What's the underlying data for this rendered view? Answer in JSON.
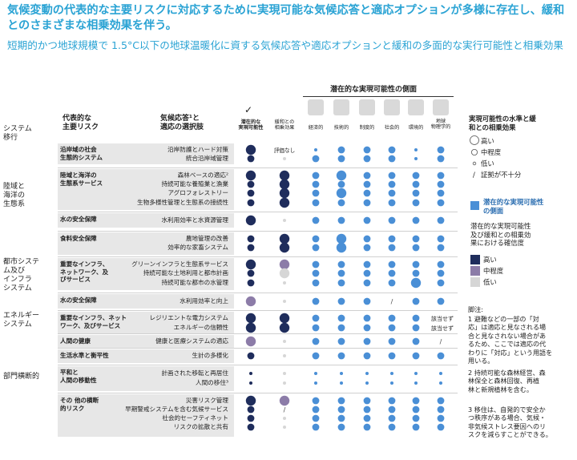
{
  "title": "気候変動の代表的な主要リスクに対応するために実現可能な気候応答と適応オプションが多様に存在し、緩和とのさまざまな相乗効果を伴う。",
  "subtitle": "短期的かつ地球規模で 1.5°C以下の地球温暖化に資する気候応答や適応オプションと緩和の多面的な実行可能性と相乗効果",
  "header": {
    "potential_title": "潜在的な実現可能性の側面",
    "risk_col": "代表的な\n主要リスク",
    "option_col": "気候応答¹と\n適応の選択肢",
    "col_feasibility": "潜在的な\n実現可能性",
    "col_synergy": "緩和との\n相乗効果",
    "dims": [
      "経済的",
      "技術的",
      "制度的",
      "社会的",
      "環境的",
      "地球\n物理学的"
    ],
    "check_mark": "✓"
  },
  "systems": [
    {
      "label": "システム\n移行"
    },
    {
      "label": "陸域と\n海洋の\n生態系"
    },
    {
      "label": "都市システ\nム及び\nインフラ\nシステム"
    },
    {
      "label": "エネルギー\nシステム"
    },
    {
      "label": "部門横断的"
    }
  ],
  "risks": [
    {
      "label": "沿岸域の社会\n生態的システム"
    },
    {
      "label": "陸域と海洋の\n生態系サービス"
    },
    {
      "label": "水の安全保障"
    },
    {
      "label": "食料安全保障"
    },
    {
      "label": "重要なインフラ、\nネットワーク、及\nびサービス"
    },
    {
      "label": "水の安全保障"
    },
    {
      "label": "重要なインフラ、ネット\nワーク、及びサービス"
    },
    {
      "label": "人間の健康"
    },
    {
      "label": "生活水準と衡平性"
    },
    {
      "label": "平和と\n人間の移動性"
    },
    {
      "label": "その 他の横断\n的リスク"
    }
  ],
  "options": [
    {
      "label": "沿岸防護とハード対策",
      "feas": "H",
      "syn": "NA",
      "dims": [
        "L",
        "M",
        "M",
        "M",
        "L",
        "M"
      ]
    },
    {
      "label": "統合沿岸域管理",
      "feas": "M",
      "syn": "",
      "dims": [
        "M",
        "M",
        "M",
        "M",
        "L",
        "M"
      ]
    },
    {
      "label": "森林ベースの適応²",
      "feas": "H",
      "syn": "H",
      "dims": [
        "M",
        "H",
        "M",
        "M",
        "M",
        "M"
      ]
    },
    {
      "label": "持続可能な養殖業と漁業",
      "feas": "M",
      "syn": "H",
      "dims": [
        "M",
        "M",
        "M",
        "M",
        "M",
        "M"
      ]
    },
    {
      "label": "アグロフォレストリー",
      "feas": "M",
      "syn": "H",
      "dims": [
        "M",
        "H",
        "M",
        "M",
        "M",
        "M"
      ]
    },
    {
      "label": "生物多様性管理と生態系の接続性",
      "feas": "M",
      "syn": "H",
      "dims": [
        "M",
        "M",
        "M",
        "M",
        "M",
        "M"
      ]
    },
    {
      "label": "水利用効率と水資源管理",
      "feas": "H",
      "syn": "",
      "dims": [
        "M",
        "M",
        "M",
        "M",
        "M",
        "M"
      ]
    },
    {
      "label": "農地管理の改善",
      "feas": "M",
      "syn": "H",
      "dims": [
        "M",
        "H",
        "M",
        "M",
        "M",
        "M"
      ]
    },
    {
      "label": "効率的な家畜システム",
      "feas": "M",
      "syn": "H",
      "dims": [
        "M",
        "H",
        "M",
        "M",
        "M",
        "M"
      ]
    },
    {
      "label": "グリーンインフラと生態系サービス",
      "feas": "H",
      "syn": "P",
      "dims": [
        "M",
        "M",
        "M",
        "M",
        "M",
        "M"
      ]
    },
    {
      "label": "持続可能な土地利用と都市計画",
      "feas": "M",
      "syn": "G",
      "dims": [
        "M",
        "M",
        "M",
        "M",
        "M",
        "M"
      ]
    },
    {
      "label": "持続可能な都市の水管理",
      "feas": "M",
      "syn": "",
      "dims": [
        "M",
        "M",
        "M",
        "M",
        "H",
        "M"
      ]
    },
    {
      "label": "水利用効率と向上",
      "feas": "P",
      "syn": "",
      "dims": [
        "M",
        "M",
        "M",
        "/",
        "M",
        "M"
      ]
    },
    {
      "label": "レジリエントな電力システム",
      "feas": "H",
      "syn": "H",
      "dims": [
        "M",
        "M",
        "M",
        "M",
        "M",
        "NA1"
      ]
    },
    {
      "label": "エネルギーの信頼性",
      "feas": "H",
      "syn": "H",
      "dims": [
        "M",
        "M",
        "M",
        "M",
        "M",
        "NA2"
      ]
    },
    {
      "label": "健康と医療システムの適応",
      "feas": "P",
      "syn": "",
      "dims": [
        "M",
        "M",
        "M",
        "M",
        "M",
        "/"
      ]
    },
    {
      "label": "生計の多様化",
      "feas": "M",
      "syn": "",
      "dims": [
        "M",
        "M",
        "M",
        "M",
        "M",
        "M"
      ]
    },
    {
      "label": "計画された移転と再居住",
      "feas": "L",
      "syn": "",
      "dims": [
        "L",
        "L",
        "L",
        "L",
        "L",
        "L"
      ]
    },
    {
      "label": "人間の移住³",
      "feas": "L",
      "syn": "",
      "dims": [
        "L",
        "L",
        "L",
        "L",
        "L",
        "L"
      ]
    },
    {
      "label": "災害リスク管理",
      "feas": "H",
      "syn": "P",
      "dims": [
        "M",
        "M",
        "M",
        "M",
        "M",
        "M"
      ]
    },
    {
      "label": "早期警戒システムを含む気候サービス",
      "feas": "M",
      "syn": "/",
      "dims": [
        "M",
        "M",
        "M",
        "M",
        "M",
        "M"
      ]
    },
    {
      "label": "社会的セーフティネット",
      "feas": "M",
      "syn": "",
      "dims": [
        "M",
        "M",
        "M",
        "M",
        "M",
        "M"
      ]
    },
    {
      "label": "リスクの拡散と共有",
      "feas": "M",
      "syn": "",
      "dims": [
        "M",
        "M",
        "M",
        "M",
        "M",
        "M"
      ]
    }
  ],
  "cell_text": {
    "not_assessed": "評価なし",
    "na1": "該当せず",
    "na2": "該当せず"
  },
  "legend": {
    "title": "実現可能性の水準と緩\n和との相乗効果",
    "high": "高い",
    "medium": "中程度",
    "low": "低い",
    "slash": "/",
    "insufficient": "証拠が不十分",
    "potential_title": "潜在的な実現可能性\nの側面",
    "confidence_title": "潜在的な実現可能性\n及び緩和との相乗効\n果における確信度",
    "conf_high": "高い",
    "conf_medium": "中程度",
    "conf_low": "低い"
  },
  "footnotes": {
    "title": "脚注:",
    "n1": "1 避難などの一部の「対\n応」は適応と見なされる場\n合と見なされない場合があ\nるため、ここでは適応の代\nわりに「対応」という用語を\n用いる。",
    "n2": "2 持続可能な森林経営、森\n林保全と森林回復、再植\n林と新規植林を含む。",
    "n3": "3 移住は、自発的で安全か\nつ秩序がある場合、気候・\n非気候ストレス要因へのリ\nスクを減らすことができる。"
  },
  "colors": {
    "accent": "#2aa3d4",
    "dim_dot": "#4a8fd6",
    "conf_high": "#1f2d5c",
    "conf_medium": "#8c7ca8",
    "conf_low": "#d6d6d6"
  }
}
